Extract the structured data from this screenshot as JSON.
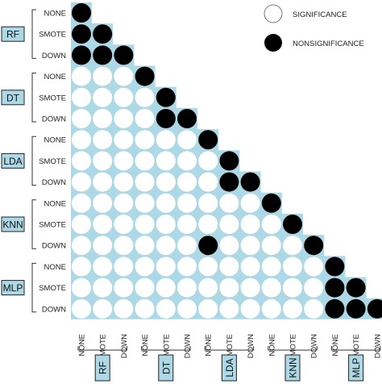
{
  "chart_data": {
    "type": "heatmap",
    "title": "",
    "groups": [
      "RF",
      "DT",
      "LDA",
      "KNN",
      "MLP"
    ],
    "methods": [
      "NONE",
      "SMOTE",
      "DOWN"
    ],
    "row_labels": [
      "RF NONE",
      "RF SMOTE",
      "RF DOWN",
      "DT NONE",
      "DT SMOTE",
      "DT DOWN",
      "LDA NONE",
      "LDA SMOTE",
      "LDA DOWN",
      "KNN NONE",
      "KNN SMOTE",
      "KNN DOWN",
      "MLP NONE",
      "MLP SMOTE",
      "MLP DOWN"
    ],
    "col_labels": [
      "RF NONE",
      "RF SMOTE",
      "RF DOWN",
      "DT NONE",
      "DT SMOTE",
      "DT DOWN",
      "LDA NONE",
      "LDA SMOTE",
      "LDA DOWN",
      "KNN NONE",
      "KNN SMOTE",
      "KNN DOWN",
      "MLP NONE",
      "MLP SMOTE",
      "MLP DOWN"
    ],
    "legend": [
      {
        "label": "SIGNIFICANCE",
        "value": 0
      },
      {
        "label": "NONSIGNIFICANCE",
        "value": 1
      }
    ],
    "legend_position": "top-right",
    "colors": {
      "significance": "#ffffff",
      "nonsignificance": "#000000",
      "background": "#add8e6",
      "group_box": "#add8e6"
    },
    "matrix": [
      [
        1,
        0,
        0,
        0,
        0,
        0,
        0,
        0,
        0,
        0,
        0,
        0,
        0,
        0,
        0
      ],
      [
        1,
        1,
        0,
        0,
        0,
        0,
        0,
        0,
        0,
        0,
        0,
        0,
        0,
        0,
        0
      ],
      [
        1,
        1,
        1,
        0,
        0,
        0,
        0,
        0,
        0,
        0,
        0,
        0,
        0,
        0,
        0
      ],
      [
        0,
        0,
        0,
        1,
        0,
        0,
        0,
        0,
        0,
        0,
        0,
        0,
        0,
        0,
        0
      ],
      [
        0,
        0,
        0,
        0,
        1,
        0,
        0,
        0,
        0,
        0,
        0,
        0,
        0,
        0,
        0
      ],
      [
        0,
        0,
        0,
        0,
        1,
        1,
        0,
        0,
        0,
        0,
        0,
        0,
        0,
        0,
        0
      ],
      [
        0,
        0,
        0,
        0,
        0,
        0,
        1,
        0,
        0,
        0,
        0,
        0,
        0,
        0,
        0
      ],
      [
        0,
        0,
        0,
        0,
        0,
        0,
        0,
        1,
        0,
        0,
        0,
        0,
        0,
        0,
        0
      ],
      [
        0,
        0,
        0,
        0,
        0,
        0,
        0,
        1,
        1,
        0,
        0,
        0,
        0,
        0,
        0
      ],
      [
        0,
        0,
        0,
        0,
        0,
        0,
        0,
        0,
        0,
        1,
        0,
        0,
        0,
        0,
        0
      ],
      [
        0,
        0,
        0,
        0,
        0,
        0,
        0,
        0,
        0,
        0,
        1,
        0,
        0,
        0,
        0
      ],
      [
        0,
        0,
        0,
        0,
        0,
        0,
        1,
        0,
        0,
        0,
        0,
        1,
        0,
        0,
        0
      ],
      [
        0,
        0,
        0,
        0,
        0,
        0,
        0,
        0,
        0,
        0,
        0,
        0,
        1,
        0,
        0
      ],
      [
        0,
        0,
        0,
        0,
        0,
        0,
        0,
        0,
        0,
        0,
        0,
        0,
        1,
        1,
        0
      ],
      [
        0,
        0,
        0,
        0,
        0,
        0,
        0,
        0,
        0,
        0,
        0,
        0,
        1,
        1,
        1
      ]
    ]
  }
}
